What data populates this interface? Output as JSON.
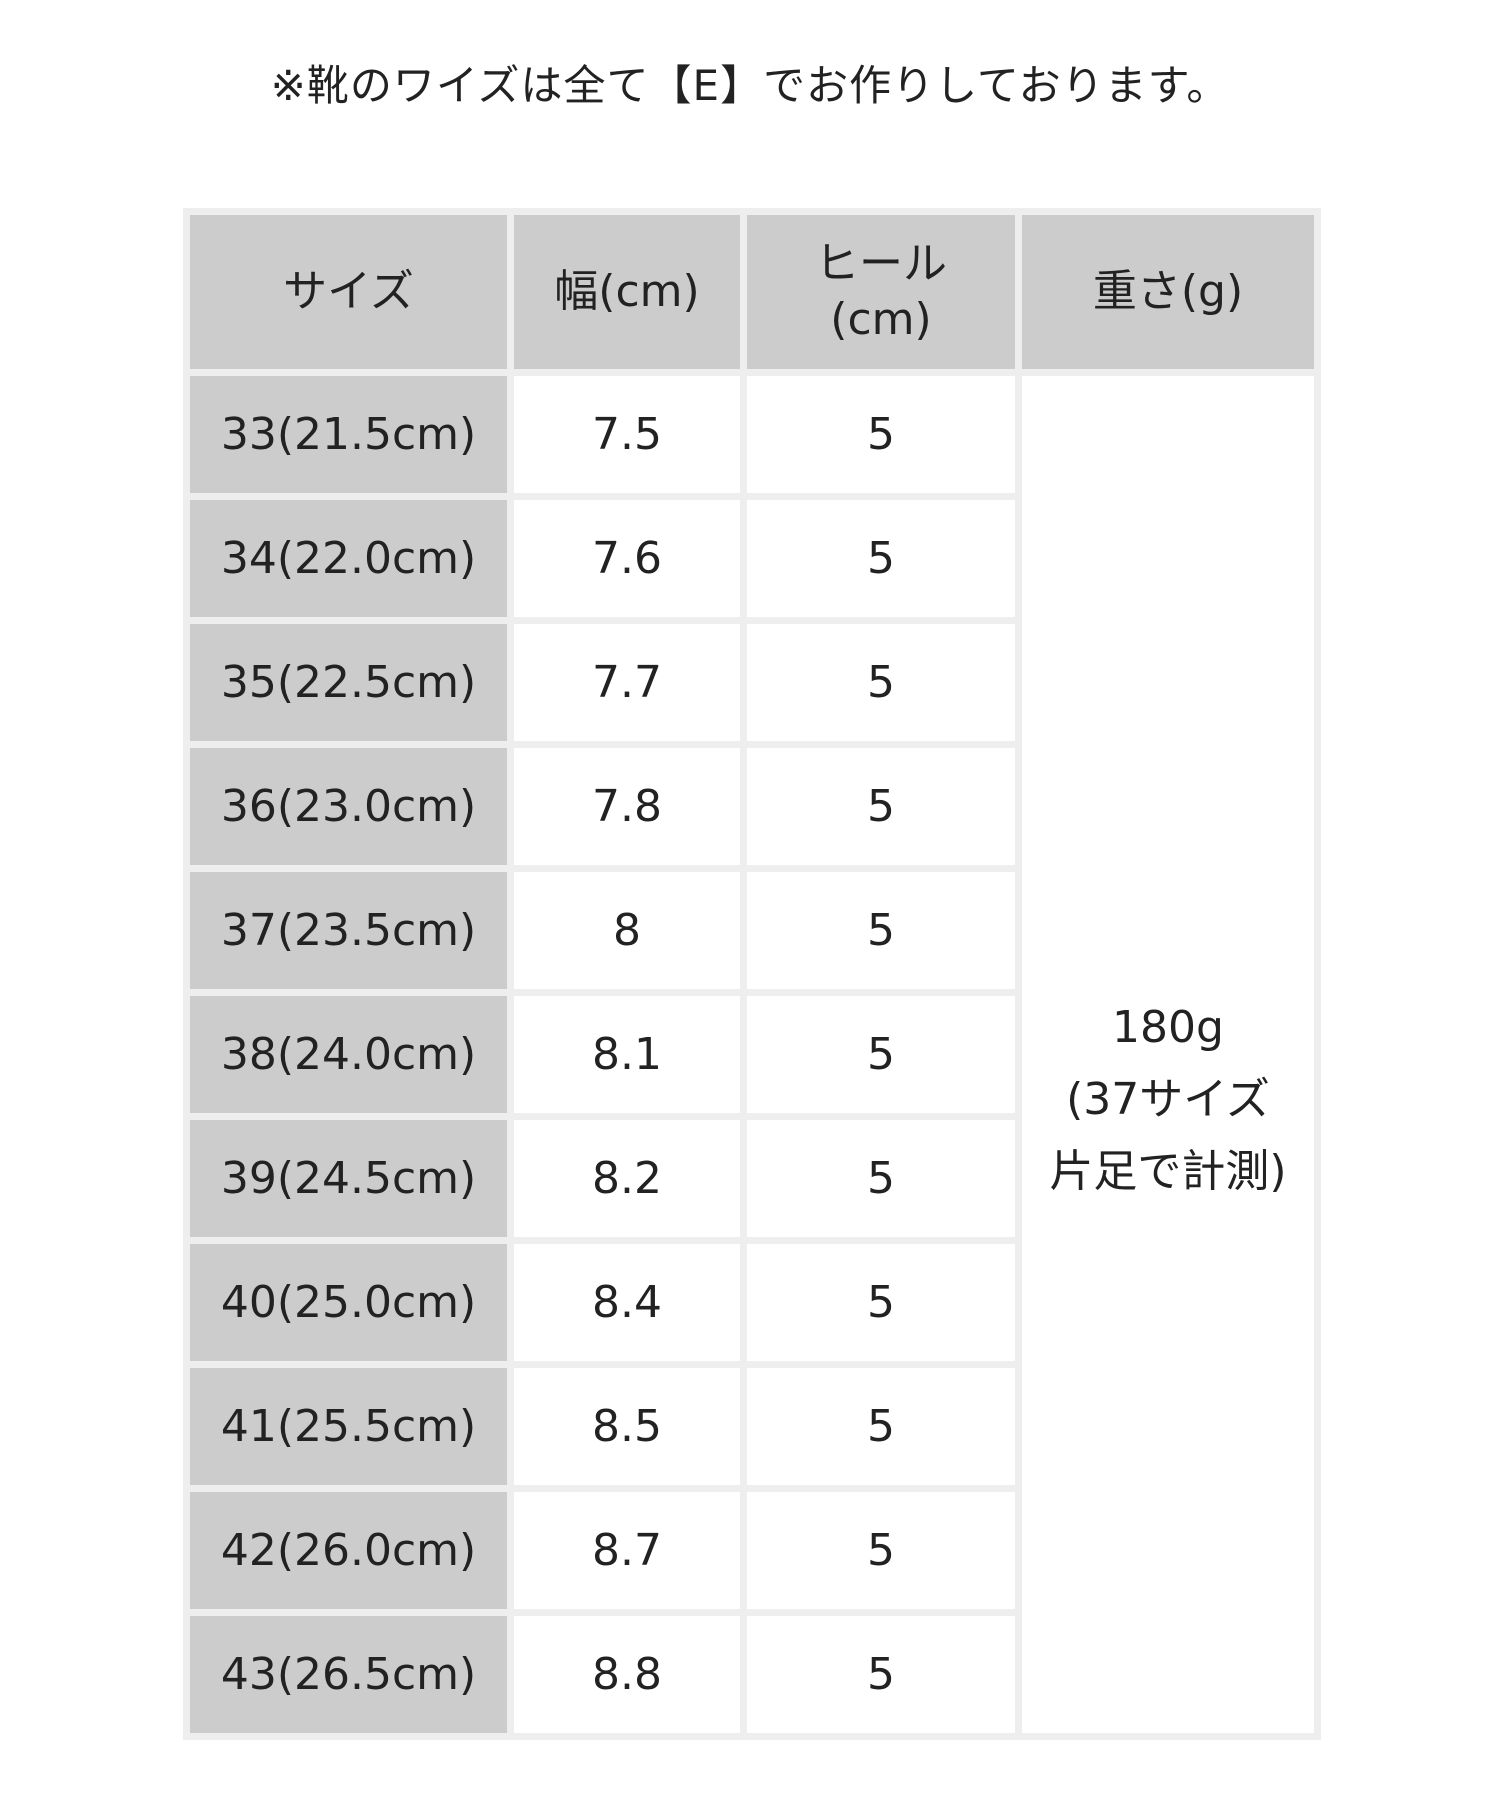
{
  "note": "※靴のワイズは全て【E】でお作りしております。",
  "table": {
    "headers": [
      "サイズ",
      "幅(cm)",
      "ヒール\n(cm)",
      "重さ(g)"
    ],
    "rows": [
      {
        "size": "33(21.5cm)",
        "width": "7.5",
        "heel": "5"
      },
      {
        "size": "34(22.0cm)",
        "width": "7.6",
        "heel": "5"
      },
      {
        "size": "35(22.5cm)",
        "width": "7.7",
        "heel": "5"
      },
      {
        "size": "36(23.0cm)",
        "width": "7.8",
        "heel": "5"
      },
      {
        "size": "37(23.5cm)",
        "width": "8",
        "heel": "5"
      },
      {
        "size": "38(24.0cm)",
        "width": "8.1",
        "heel": "5"
      },
      {
        "size": "39(24.5cm)",
        "width": "8.2",
        "heel": "5"
      },
      {
        "size": "40(25.0cm)",
        "width": "8.4",
        "heel": "5"
      },
      {
        "size": "41(25.5cm)",
        "width": "8.5",
        "heel": "5"
      },
      {
        "size": "42(26.0cm)",
        "width": "8.7",
        "heel": "5"
      },
      {
        "size": "43(26.5cm)",
        "width": "8.8",
        "heel": "5"
      }
    ],
    "weight_lines": [
      "180g",
      "(37サイズ",
      "片足で計測)"
    ]
  },
  "colors": {
    "header_bg": "#cccccc",
    "border": "#eeeeee"
  }
}
